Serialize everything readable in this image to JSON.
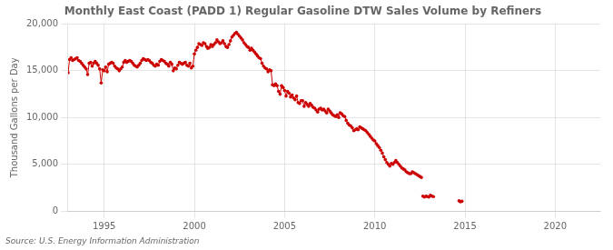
{
  "chart_data": {
    "type": "line",
    "title": "Monthly East Coast (PADD 1) Regular Gasoline DTW Sales Volume by Refiners",
    "ylabel": "Thousand Gallons per Day",
    "annotations": [
      "Source: U.S. Energy Information Administration"
    ],
    "xlim": [
      1993.0,
      2022.5
    ],
    "xticks": [
      1995,
      2000,
      2005,
      2010,
      2015,
      2020
    ],
    "ylim": [
      0,
      20000
    ],
    "yticks": [
      0,
      {
        "value": 5000,
        "label": "5,000"
      },
      {
        "value": 10000,
        "label": "10,000"
      },
      {
        "value": 15000,
        "label": "15,000"
      },
      {
        "value": 20000,
        "label": "20,000"
      }
    ],
    "grid": true,
    "marker": "circle",
    "line_style": "solid",
    "series": [
      {
        "color": "#cc0000",
        "x": [
          1993.0,
          1993.083,
          1993.167,
          1993.25,
          1993.333,
          1993.417,
          1993.5,
          1993.583,
          1993.667,
          1993.75,
          1993.833,
          1993.917,
          1994.0,
          1994.083,
          1994.167,
          1994.25,
          1994.333,
          1994.417,
          1994.5,
          1994.583,
          1994.667,
          1994.75,
          1994.833,
          1994.917,
          1995.0,
          1995.083,
          1995.167,
          1995.25,
          1995.333,
          1995.417,
          1995.5,
          1995.583,
          1995.667,
          1995.75,
          1995.833,
          1995.917,
          1996.0,
          1996.083,
          1996.167,
          1996.25,
          1996.333,
          1996.417,
          1996.5,
          1996.583,
          1996.667,
          1996.75,
          1996.833,
          1996.917,
          1997.0,
          1997.083,
          1997.167,
          1997.25,
          1997.333,
          1997.417,
          1997.5,
          1997.583,
          1997.667,
          1997.75,
          1997.833,
          1997.917,
          1998.0,
          1998.083,
          1998.167,
          1998.25,
          1998.333,
          1998.417,
          1998.5,
          1998.583,
          1998.667,
          1998.75,
          1998.833,
          1998.917,
          1999.0,
          1999.083,
          1999.167,
          1999.25,
          1999.333,
          1999.417,
          1999.5,
          1999.583,
          1999.667,
          1999.75,
          1999.833,
          1999.917,
          2000.0,
          2000.083,
          2000.167,
          2000.25,
          2000.333,
          2000.417,
          2000.5,
          2000.583,
          2000.667,
          2000.75,
          2000.833,
          2000.917,
          2001.0,
          2001.083,
          2001.167,
          2001.25,
          2001.333,
          2001.417,
          2001.5,
          2001.583,
          2001.667,
          2001.75,
          2001.833,
          2001.917,
          2002.0,
          2002.083,
          2002.167,
          2002.25,
          2002.333,
          2002.417,
          2002.5,
          2002.583,
          2002.667,
          2002.75,
          2002.833,
          2002.917,
          2003.0,
          2003.083,
          2003.167,
          2003.25,
          2003.333,
          2003.417,
          2003.5,
          2003.583,
          2003.667,
          2003.75,
          2003.833,
          2003.917,
          2004.0,
          2004.083,
          2004.167,
          2004.25,
          2004.333,
          2004.417,
          2004.5,
          2004.583,
          2004.667,
          2004.75,
          2004.833,
          2004.917,
          2005.0,
          2005.083,
          2005.167,
          2005.25,
          2005.333,
          2005.417,
          2005.5,
          2005.583,
          2005.667,
          2005.75,
          2005.833,
          2005.917,
          2006.0,
          2006.083,
          2006.167,
          2006.25,
          2006.333,
          2006.417,
          2006.5,
          2006.583,
          2006.667,
          2006.75,
          2006.833,
          2006.917,
          2007.0,
          2007.083,
          2007.167,
          2007.25,
          2007.333,
          2007.417,
          2007.5,
          2007.583,
          2007.667,
          2007.75,
          2007.833,
          2007.917,
          2008.0,
          2008.083,
          2008.167,
          2008.25,
          2008.333,
          2008.417,
          2008.5,
          2008.583,
          2008.667,
          2008.75,
          2008.833,
          2008.917,
          2009.0,
          2009.083,
          2009.167,
          2009.25,
          2009.333,
          2009.417,
          2009.5,
          2009.583,
          2009.667,
          2009.75,
          2009.833,
          2009.917,
          2010.0,
          2010.083,
          2010.167,
          2010.25,
          2010.333,
          2010.417,
          2010.5,
          2010.583,
          2010.667,
          2010.75,
          2010.833,
          2010.917,
          2011.0,
          2011.083,
          2011.167,
          2011.25,
          2011.333,
          2011.417,
          2011.5,
          2011.583,
          2011.667,
          2011.75,
          2011.833,
          2011.917,
          2012.0,
          2012.083,
          2012.167,
          2012.25,
          2012.333,
          2012.417,
          2012.5,
          2012.583
        ],
        "values": [
          14800,
          16200,
          16400,
          16100,
          16200,
          16300,
          16400,
          16100,
          16000,
          15800,
          15600,
          15400,
          15200,
          14600,
          15800,
          15900,
          15500,
          15800,
          16000,
          15800,
          15600,
          15200,
          13700,
          15100,
          15000,
          15400,
          14900,
          15700,
          15800,
          15900,
          15800,
          15500,
          15300,
          15200,
          15000,
          15200,
          15400,
          15900,
          16100,
          15900,
          16000,
          16100,
          16000,
          15800,
          15600,
          15500,
          15400,
          15600,
          15800,
          16100,
          16300,
          16200,
          16100,
          16200,
          16100,
          15900,
          15800,
          15600,
          15500,
          15700,
          15600,
          16000,
          16200,
          16100,
          16000,
          15800,
          15700,
          15500,
          15900,
          15700,
          15000,
          15300,
          15200,
          15600,
          15900,
          15800,
          15700,
          15800,
          15900,
          15600,
          15500,
          15800,
          15300,
          15500,
          16800,
          17200,
          17500,
          17900,
          17800,
          17700,
          18000,
          17900,
          17600,
          17400,
          17500,
          17800,
          17600,
          17800,
          18000,
          18300,
          18100,
          17900,
          18000,
          18200,
          17900,
          17600,
          17500,
          17800,
          18200,
          18600,
          18800,
          19000,
          19100,
          18900,
          18700,
          18500,
          18300,
          18000,
          17800,
          17600,
          17500,
          17200,
          17400,
          17200,
          17000,
          16800,
          16600,
          16400,
          16300,
          15800,
          15500,
          15300,
          15200,
          14900,
          15100,
          15000,
          13500,
          13400,
          13600,
          13400,
          12800,
          12500,
          13400,
          13200,
          12900,
          12300,
          12800,
          12600,
          12200,
          12400,
          12100,
          11900,
          12300,
          11600,
          11500,
          11800,
          11800,
          11200,
          11600,
          11400,
          11200,
          11500,
          11300,
          11100,
          11000,
          10800,
          10600,
          10900,
          11000,
          10800,
          10900,
          10700,
          10500,
          10900,
          10700,
          10500,
          10300,
          10200,
          10100,
          10300,
          10000,
          10500,
          10400,
          10200,
          10100,
          9700,
          9400,
          9200,
          9100,
          8900,
          8600,
          8700,
          8800,
          8700,
          9000,
          8900,
          8800,
          8700,
          8600,
          8400,
          8200,
          8000,
          7800,
          7600,
          7500,
          7200,
          7000,
          6800,
          6500,
          6200,
          5800,
          5500,
          5200,
          5000,
          4800,
          5100,
          5000,
          5200,
          5400,
          5200,
          5000,
          4800,
          4600,
          4500,
          4400,
          4200,
          4100,
          4000,
          4000,
          4200,
          4100,
          4000,
          3900,
          3800,
          3700,
          3600
        ]
      },
      {
        "color": "#cc0000",
        "x": [
          2012.667,
          2012.75,
          2012.833,
          2012.917,
          2013.0,
          2013.083,
          2013.167,
          2013.25
        ],
        "values": [
          1600,
          1500,
          1600,
          1550,
          1500,
          1700,
          1600,
          1550
        ]
      },
      {
        "color": "#cc0000",
        "x": [
          2014.667,
          2014.75,
          2014.833
        ],
        "values": [
          1100,
          1000,
          1050
        ]
      }
    ]
  }
}
